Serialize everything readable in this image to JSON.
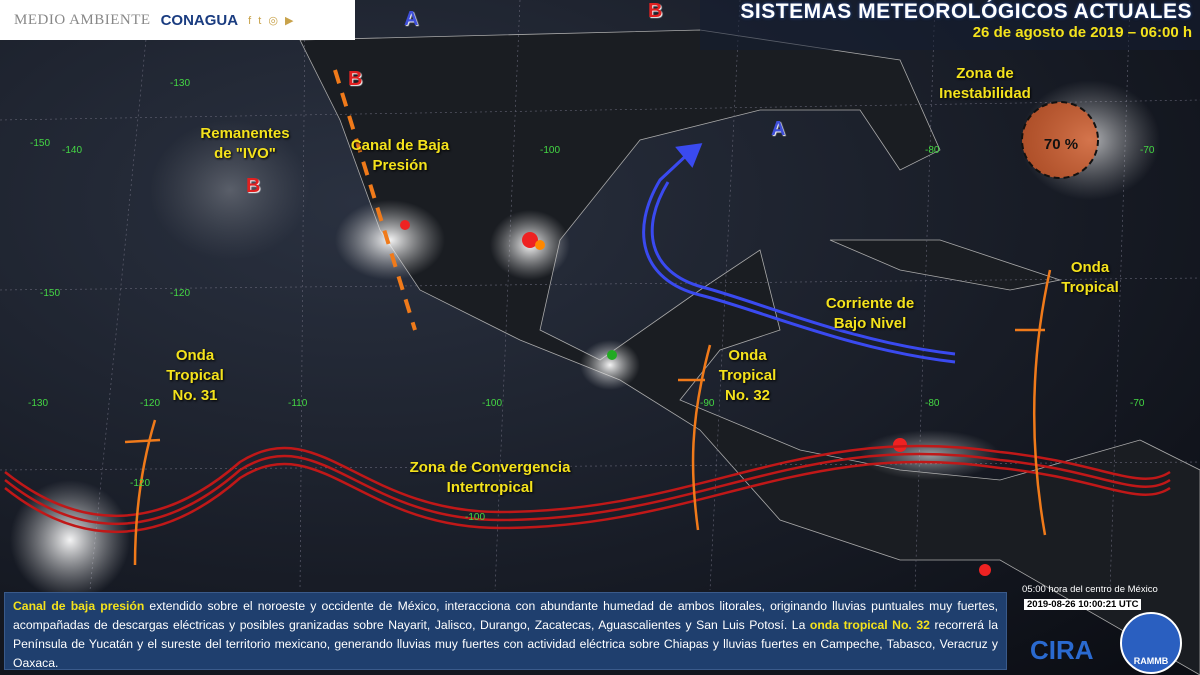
{
  "header": {
    "agency_logo": "MEDIO AMBIENTE",
    "conagua_logo": "CONAGUA",
    "social_icons": [
      "facebook-icon",
      "twitter-icon",
      "instagram-icon",
      "youtube-icon"
    ],
    "title": "SISTEMAS METEOROLÓGICOS ACTUALES",
    "subtitle": "26 de agosto de 2019 – 06:00 h"
  },
  "pressure_centers": [
    {
      "type": "A",
      "color": "#3f4fd8"
    },
    {
      "type": "B",
      "color": "#e02020"
    },
    {
      "type": "B",
      "color": "#e02020"
    },
    {
      "type": "B",
      "color": "#e02020"
    },
    {
      "type": "A",
      "color": "#3f4fd8"
    }
  ],
  "systems": {
    "ivo": "Remanentes de \"IVO\"",
    "canal": "Canal de Baja Presión",
    "zona_inestabilidad": "Zona de Inestabilidad",
    "probability": "70 %",
    "onda_tropical": "Onda Tropical",
    "corriente": "Corriente de Bajo Nivel",
    "onda32": "Onda Tropical No. 32",
    "onda31": "Onda Tropical No. 31",
    "zci": "Zona de Convergencia Intertropical"
  },
  "grid_labels": [
    "-150",
    "-140",
    "-130",
    "-120",
    "-110",
    "-100",
    "-90",
    "-80",
    "-70",
    "-100",
    "-120",
    "-130",
    "-80",
    "-70",
    "-150",
    "-100",
    "-120"
  ],
  "info": {
    "hl1": "Canal de baja presión",
    "t1": " extendido sobre el noroeste y occidente de México,  interacciona con abundante humedad de ambos litorales, originando lluvias puntuales muy fuertes, acompañadas de descargas eléctricas y posibles granizadas sobre Nayarit, Jalisco, Durango, Zacatecas, Aguascalientes y San Luis Potosí. La ",
    "hl2": "onda tropical No. 32",
    "t2": " recorrerá la Península de Yucatán y el sureste del territorio mexicano, generando lluvias muy fuertes con actividad eléctrica sobre Chiapas y lluvias fuertes en Campeche, Tabasco, Veracruz y Oaxaca."
  },
  "footer": {
    "local_time": "05:00 hora del centro de México",
    "utc": "2019-08-26 10:00:21 UTC",
    "cira": "CIRA",
    "rammb": "RAMMB"
  },
  "colors": {
    "highlight": "#f4e21c",
    "itcz": "#c01818",
    "low_level_jet": "#3a4af0",
    "tropical_wave": "#f07a1a"
  }
}
